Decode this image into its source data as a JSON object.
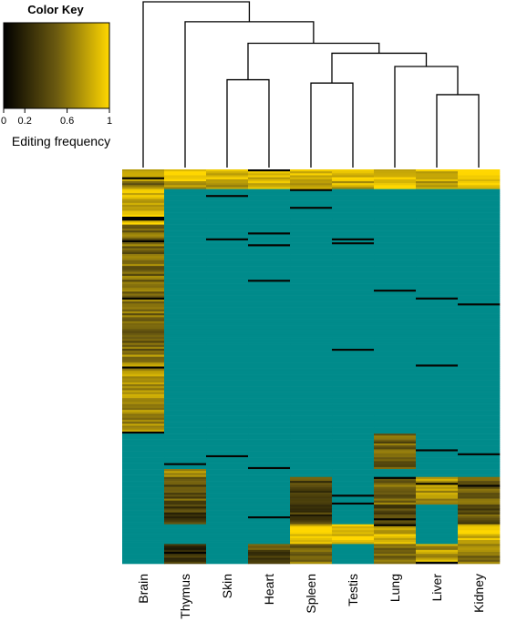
{
  "chart_data": {
    "type": "heatmap",
    "color_key": {
      "title": "Color Key",
      "label": "Editing frequency",
      "ticks": [
        0,
        0.2,
        0.6,
        1
      ],
      "tick_labels": [
        "0",
        "0.2",
        "0.6",
        "1"
      ],
      "range": [
        0,
        1
      ],
      "gradient_colors": [
        "#000000",
        "#6b5a10",
        "#ffd700"
      ]
    },
    "na_color": "#008b8b",
    "columns": [
      "Brain",
      "Thymus",
      "Skin",
      "Heart",
      "Spleen",
      "Testis",
      "Lung",
      "Liver",
      "Kidney"
    ],
    "dendrogram": {
      "merges": [
        {
          "a": 2,
          "b": 3,
          "height": 0.53
        },
        {
          "a": 4,
          "b": 5,
          "height": 0.51
        },
        {
          "a": 7,
          "b": 8,
          "height": 0.44
        },
        {
          "a": 6,
          "b": -3,
          "height": 0.61
        },
        {
          "a": -2,
          "b": -4,
          "height": 0.69
        },
        {
          "a": -1,
          "b": -5,
          "height": 0.75
        },
        {
          "a": 1,
          "b": -6,
          "height": 0.88
        },
        {
          "a": 0,
          "b": -7,
          "height": 1.0
        }
      ]
    },
    "row_count": 200,
    "row_blocks": [
      {
        "from": 0,
        "to": 0.03,
        "values": [
          0.7,
          0.95,
          0.9,
          0.85,
          0.9,
          0.9,
          0.9,
          0.85,
          0.95
        ]
      },
      {
        "from": 0.03,
        "to": 0.05,
        "values": [
          0.6,
          0.75,
          0.8,
          0.8,
          0.8,
          0.85,
          0.95,
          0.8,
          0.9
        ]
      },
      {
        "from": 0.05,
        "to": 0.14,
        "values": [
          0.85,
          null,
          null,
          null,
          null,
          null,
          null,
          null,
          null
        ]
      },
      {
        "from": 0.14,
        "to": 0.46,
        "values": [
          0.55,
          null,
          null,
          null,
          null,
          null,
          null,
          null,
          null
        ]
      },
      {
        "from": 0.46,
        "to": 0.67,
        "values": [
          0.7,
          null,
          null,
          null,
          null,
          null,
          null,
          null,
          null
        ]
      },
      {
        "from": 0.67,
        "to": 0.76,
        "values": [
          null,
          null,
          null,
          null,
          null,
          null,
          0.5,
          null,
          null
        ]
      },
      {
        "from": 0.76,
        "to": 0.78,
        "values": [
          null,
          0.8,
          null,
          null,
          null,
          null,
          null,
          null,
          null
        ]
      },
      {
        "from": 0.78,
        "to": 0.85,
        "values": [
          null,
          0.45,
          null,
          null,
          0.4,
          null,
          0.55,
          0.7,
          0.5
        ]
      },
      {
        "from": 0.85,
        "to": 0.9,
        "values": [
          null,
          0.35,
          null,
          null,
          0.3,
          null,
          0.4,
          null,
          0.45
        ]
      },
      {
        "from": 0.9,
        "to": 0.95,
        "values": [
          null,
          null,
          null,
          null,
          0.9,
          0.95,
          0.85,
          null,
          0.85
        ]
      },
      {
        "from": 0.95,
        "to": 1.0,
        "values": [
          null,
          0.3,
          null,
          0.4,
          0.55,
          null,
          0.5,
          0.75,
          0.6
        ]
      }
    ]
  }
}
